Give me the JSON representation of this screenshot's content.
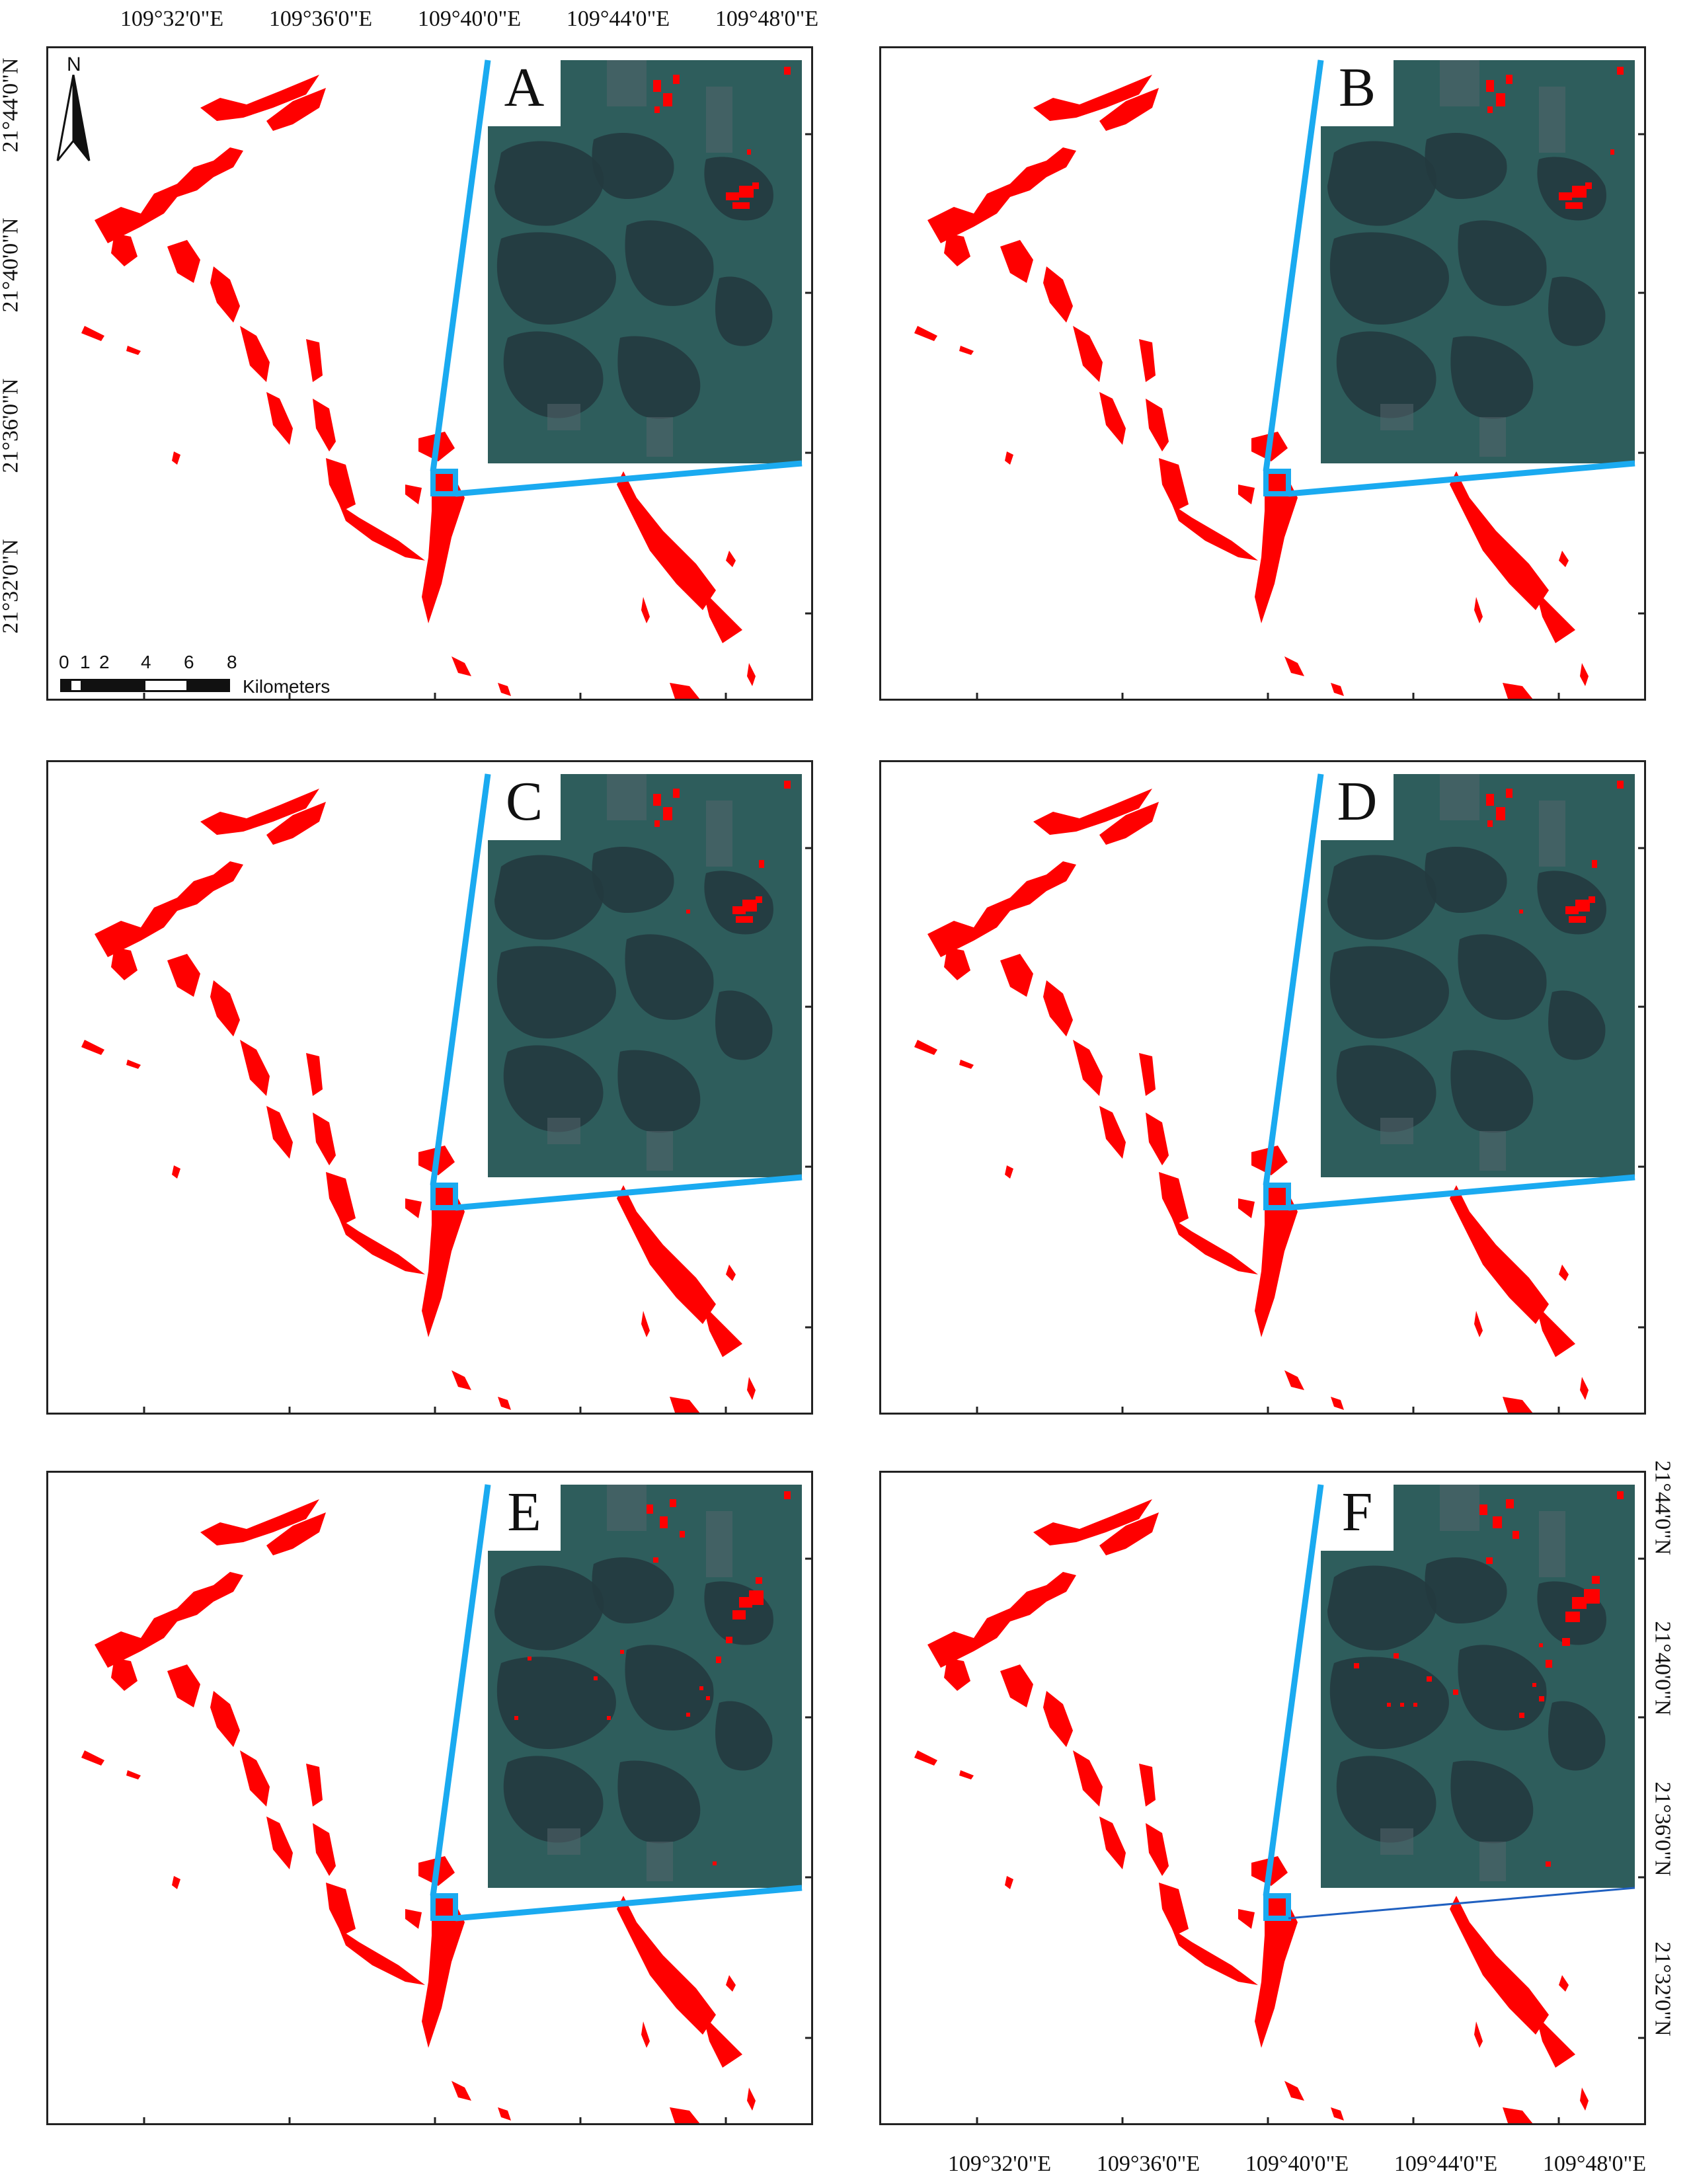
{
  "axes": {
    "top_longitudes": [
      "109°32'0\"E",
      "109°36'0\"E",
      "109°40'0\"E",
      "109°44'0\"E",
      "109°48'0\"E"
    ],
    "bottom_longitudes": [
      "109°32'0\"E",
      "109°36'0\"E",
      "109°40'0\"E",
      "109°44'0\"E",
      "109°48'0\"E"
    ],
    "left_latitudes": [
      "21°44'0\"N",
      "21°40'0\"N",
      "21°36'0\"N",
      "21°32'0\"N"
    ],
    "right_latitudes": [
      "21°44'0\"N",
      "21°40'0\"N",
      "21°36'0\"N",
      "21°32'0\"N"
    ]
  },
  "north_arrow": {
    "label": "N"
  },
  "scale_bar": {
    "ticks": [
      "0",
      "1",
      "2",
      "4",
      "6",
      "8"
    ],
    "unit": "Kilometers"
  },
  "panels": [
    {
      "letter": "A"
    },
    {
      "letter": "B"
    },
    {
      "letter": "C"
    },
    {
      "letter": "D"
    },
    {
      "letter": "E"
    },
    {
      "letter": "F"
    }
  ],
  "colors": {
    "mangrove": "#ff0000",
    "zoom_outline": "#1aaaf0",
    "inset_water": "#2e5d5c",
    "inset_land": "#243a3f",
    "frame": "#222222"
  }
}
